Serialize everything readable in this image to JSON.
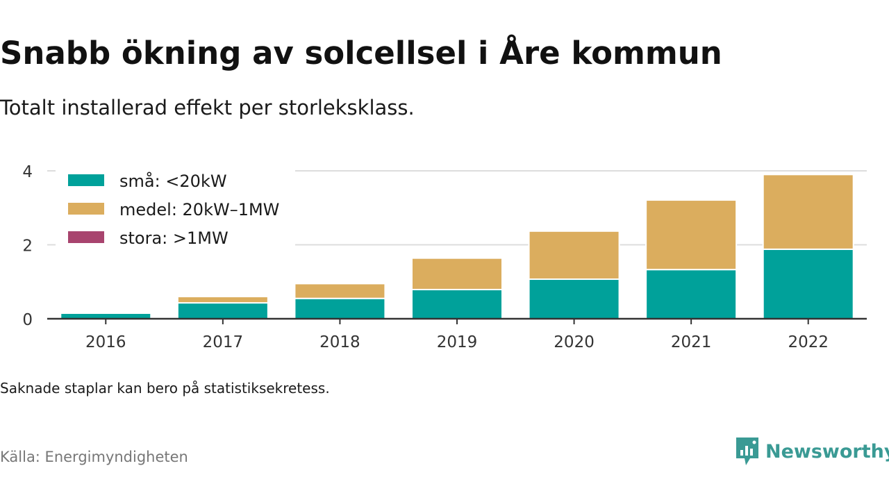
{
  "header": {
    "title": "Snabb ökning av solcellsel i Åre kommun",
    "subtitle": "Totalt installerad effekt per storleksklass."
  },
  "footer": {
    "note": "Saknade staplar kan bero på statistiksekretess.",
    "source": "Källa: Energimyndigheten",
    "brand": "Newsworthy",
    "brand_icon": "newsworthy-logo-icon"
  },
  "colors": {
    "sma": "#00a19a",
    "medel": "#dbad5e",
    "stora": "#a8446e",
    "grid": "#dddddd",
    "axis": "#333333",
    "brand": "#3a9a94"
  },
  "chart_data": {
    "type": "bar",
    "stacked": true,
    "categories": [
      "2016",
      "2017",
      "2018",
      "2019",
      "2020",
      "2021",
      "2022"
    ],
    "series": [
      {
        "name": "små: <20kW",
        "color": "#00a19a",
        "values": [
          0.15,
          0.43,
          0.55,
          0.79,
          1.07,
          1.33,
          1.88
        ]
      },
      {
        "name": "medel: 20kW–1MW",
        "color": "#dbad5e",
        "values": [
          0,
          0.17,
          0.4,
          0.85,
          1.3,
          1.88,
          2.02
        ]
      },
      {
        "name": "stora: >1MW",
        "color": "#a8446e",
        "values": [
          0,
          0,
          0,
          0,
          0,
          0,
          0
        ]
      }
    ],
    "yticks": [
      0,
      2,
      4
    ],
    "ylim": [
      0,
      4.1
    ],
    "grid": true,
    "legend_position": "top-left"
  }
}
